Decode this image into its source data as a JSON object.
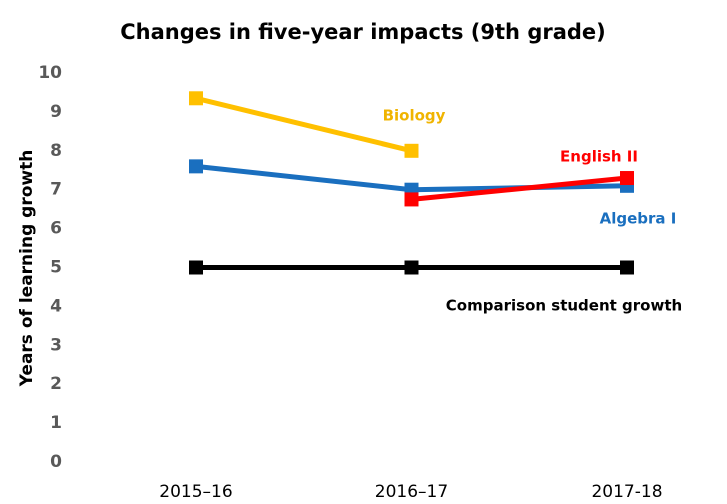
{
  "chart_data": {
    "type": "line",
    "title": "Changes in five-year impacts (9th grade)",
    "y_label": "Years of learning growth",
    "categories": [
      "2015–16",
      "2016–17",
      "2017-18"
    ],
    "series": [
      {
        "name": "Biology",
        "color": "#ffc000",
        "values": [
          9.35,
          8.0,
          null
        ]
      },
      {
        "name": "Algebra I",
        "color": "#1a6fbf",
        "values": [
          7.6,
          7.0,
          7.1
        ]
      },
      {
        "name": "English II",
        "color": "#ff0000",
        "values": [
          null,
          6.75,
          7.3
        ]
      },
      {
        "name": "Comparison student growth",
        "color": "#000000",
        "values": [
          5,
          5,
          5
        ]
      }
    ],
    "ylim": [
      0,
      10
    ],
    "yticks": [
      0,
      1,
      2,
      3,
      4,
      5,
      6,
      7,
      8,
      9,
      10
    ],
    "grid": false
  }
}
